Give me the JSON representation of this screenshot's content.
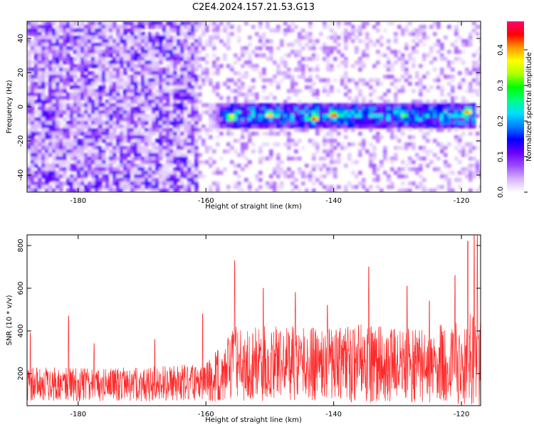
{
  "title": "C2E4.2024.157.21.53.G13",
  "chart_data": [
    {
      "type": "heatmap",
      "xlabel": "Height of straight line (km)",
      "ylabel": "Frequency (Hz)",
      "xlim": [
        -188,
        -117
      ],
      "ylim": [
        -50,
        50
      ],
      "xticks": [
        -180,
        -160,
        -140,
        -120
      ],
      "yticks": [
        -40,
        -20,
        0,
        20,
        40
      ],
      "colorbar": {
        "label": "Normalized spectral amplitude",
        "range": [
          0,
          0.48
        ],
        "ticks": [
          0.0,
          0.1,
          0.2,
          0.3,
          0.4
        ],
        "tick_labels": [
          "0.0",
          "0.1",
          "0.2",
          "0.3",
          "0.4"
        ],
        "colors": [
          "#ffffff",
          "#d6b3ff",
          "#9c4dff",
          "#6a00ff",
          "#0000ff",
          "#0080ff",
          "#00e0ff",
          "#00ff80",
          "#00ff00",
          "#b0ff00",
          "#ffff00",
          "#ff9900",
          "#ff0000",
          "#ff0077"
        ]
      },
      "bands": [
        {
          "name": "dense noise",
          "x_range": [
            -188,
            -161
          ],
          "y_range": [
            -50,
            50
          ],
          "amplitude": 0.08
        },
        {
          "name": "sparse noise",
          "x_range": [
            -161,
            -117
          ],
          "y_range": [
            -50,
            50
          ],
          "amplitude": 0.04
        },
        {
          "name": "signal line",
          "x_range": [
            -160,
            -118
          ],
          "frequency_center": -5,
          "frequency_width": 8,
          "amplitude": 0.2
        }
      ],
      "hotspots": [
        {
          "x": -156,
          "y": -6,
          "value": 0.38
        },
        {
          "x": -150,
          "y": -5,
          "value": 0.4
        },
        {
          "x": -143,
          "y": -7,
          "value": 0.45
        },
        {
          "x": -140,
          "y": -5,
          "value": 0.45
        },
        {
          "x": -129,
          "y": -5,
          "value": 0.33
        },
        {
          "x": -119,
          "y": -3,
          "value": 0.42
        }
      ],
      "grid": false
    },
    {
      "type": "line",
      "xlabel": "Height of straight line (km)",
      "ylabel": "SNR (10 * v/v)",
      "xlim": [
        -188,
        -117
      ],
      "ylim": [
        50,
        850
      ],
      "xticks": [
        -180,
        -160,
        -140,
        -120
      ],
      "yticks": [
        200,
        400,
        600,
        800
      ],
      "series": [
        {
          "color": "#ff2a2a",
          "envelope_x": [
            -188,
            -180,
            -170,
            -160,
            -156,
            -150,
            -140,
            -135,
            -130,
            -125,
            -120,
            -117
          ],
          "envelope_mean": [
            150,
            150,
            150,
            160,
            240,
            250,
            240,
            250,
            240,
            240,
            250,
            280
          ],
          "envelope_amp": [
            80,
            80,
            80,
            90,
            180,
            180,
            170,
            190,
            170,
            180,
            200,
            240
          ],
          "peaks": [
            {
              "x": -187.5,
              "y": 390
            },
            {
              "x": -181.5,
              "y": 470
            },
            {
              "x": -177.5,
              "y": 340
            },
            {
              "x": -168,
              "y": 360
            },
            {
              "x": -160.5,
              "y": 480
            },
            {
              "x": -155.5,
              "y": 730
            },
            {
              "x": -151,
              "y": 600
            },
            {
              "x": -146,
              "y": 580
            },
            {
              "x": -141,
              "y": 520
            },
            {
              "x": -134.5,
              "y": 700
            },
            {
              "x": -128.5,
              "y": 610
            },
            {
              "x": -125,
              "y": 540
            },
            {
              "x": -121,
              "y": 660
            },
            {
              "x": -119,
              "y": 820
            },
            {
              "x": -118,
              "y": 850
            },
            {
              "x": -117.5,
              "y": 860
            }
          ]
        }
      ],
      "grid": false
    }
  ]
}
